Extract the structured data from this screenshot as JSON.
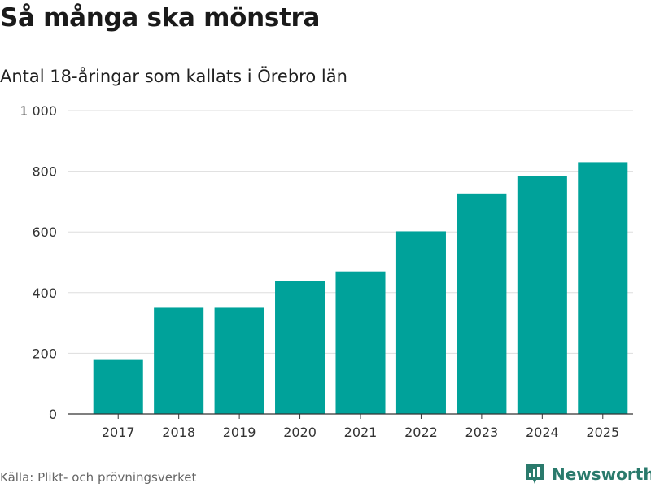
{
  "header": {
    "title": "Så många ska mönstra",
    "subtitle": "Antal 18-åringar som kallats i Örebro län"
  },
  "footer": {
    "source": "Källa: Plikt- och prövningsverket",
    "brand_name": "Newsworthy"
  },
  "colors": {
    "bar": "#00a29a",
    "brand": "#2a7a6c",
    "grid": "#dddddd"
  },
  "chart_data": {
    "type": "bar",
    "title": "Så många ska mönstra",
    "subtitle": "Antal 18-åringar som kallats i Örebro län",
    "xlabel": "",
    "ylabel": "",
    "categories": [
      "2017",
      "2018",
      "2019",
      "2020",
      "2021",
      "2022",
      "2023",
      "2024",
      "2025"
    ],
    "values": [
      178,
      350,
      350,
      438,
      470,
      602,
      727,
      785,
      830
    ],
    "ylim": [
      0,
      1000
    ],
    "yticks": [
      0,
      200,
      400,
      600,
      800,
      1000
    ],
    "ytick_labels": [
      "0",
      "200",
      "400",
      "600",
      "800",
      "1 000"
    ],
    "grid": true,
    "legend": "none"
  }
}
